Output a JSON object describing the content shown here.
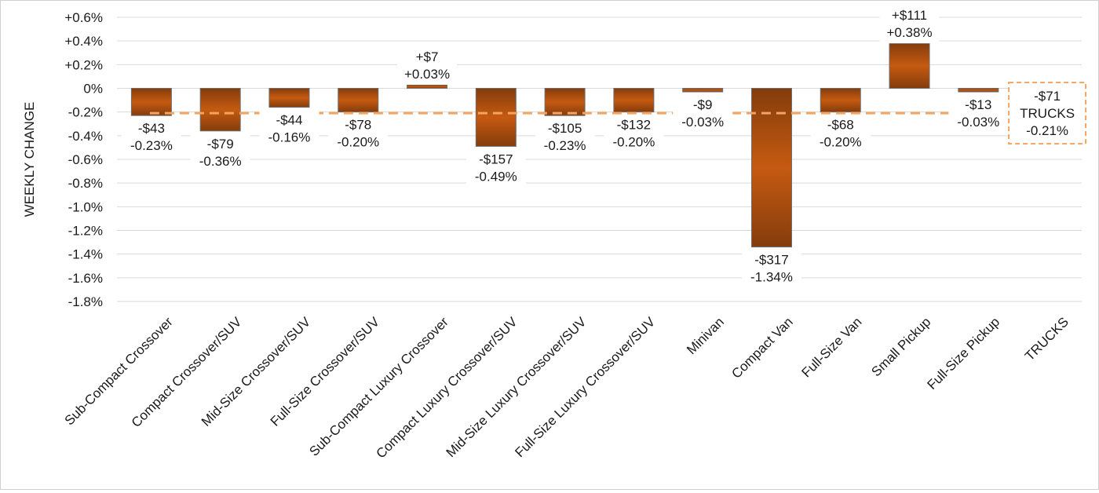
{
  "chart_data": {
    "type": "bar",
    "ylabel": "WEEKLY CHANGE",
    "xlabel": "",
    "ylim": [
      -1.8,
      0.6
    ],
    "ytick_step": 0.2,
    "y_tick_labels": [
      "+0.6%",
      "+0.4%",
      "+0.2%",
      "0%",
      "-0.2%",
      "-0.4%",
      "-0.6%",
      "-0.8%",
      "-1.0%",
      "-1.2%",
      "-1.4%",
      "-1.6%",
      "-1.8%"
    ],
    "grid": true,
    "categories": [
      "Sub-Compact Crossover",
      "Compact Crossover/SUV",
      "Mid-Size Crossover/SUV",
      "Full-Size Crossover/SUV",
      "Sub-Compact Luxury Crossover",
      "Compact Luxury Crossover/SUV",
      "Mid-Size Luxury Crossover/SUV",
      "Full-Size Luxury Crossover/SUV",
      "Minivan",
      "Compact Van",
      "Full-Size Van",
      "Small Pickup",
      "Full-Size Pickup",
      "TRUCKS"
    ],
    "values": [
      -0.23,
      -0.36,
      -0.16,
      -0.2,
      0.03,
      -0.49,
      -0.23,
      -0.2,
      -0.03,
      -1.34,
      -0.2,
      0.38,
      -0.03,
      null
    ],
    "dollar_labels": [
      "-$43",
      "-$79",
      "-$44",
      "-$78",
      "+$7",
      "-$157",
      "-$105",
      "-$132",
      "-$9",
      "-$317",
      "-$68",
      "+$111",
      "-$13"
    ],
    "percent_labels": [
      "-0.23%",
      "-0.36%",
      "-0.16%",
      "-0.20%",
      "+0.03%",
      "-0.49%",
      "-0.23%",
      "-0.20%",
      "-0.03%",
      "-1.34%",
      "-0.20%",
      "+0.38%",
      "-0.03%"
    ],
    "reference_line": {
      "value": -0.21,
      "style": "dashed",
      "labels": [
        "-$71",
        "TRUCKS",
        "-0.21%"
      ]
    },
    "colors": {
      "bar_light": "#f4b183",
      "bar_mid": "#c55a11",
      "bar_dark": "#843c0c",
      "reference": "#f4a460"
    }
  }
}
